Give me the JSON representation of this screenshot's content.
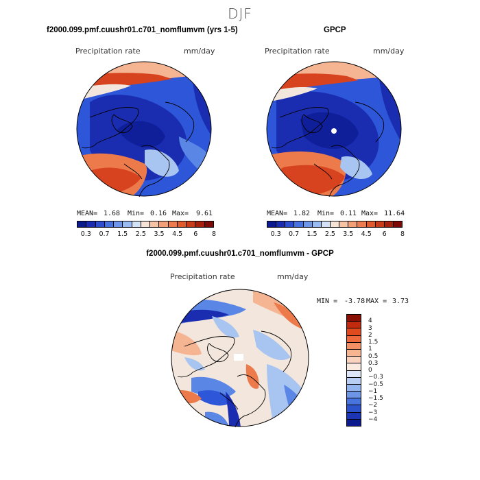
{
  "figure": {
    "season": "DJF",
    "colors": {
      "deep_blue": "#1a2db0",
      "blue": "#2d56d8",
      "mid_blue": "#5a86e6",
      "light_blue": "#a8c4f0",
      "pale": "#f3e6dc",
      "peach": "#f5b593",
      "orange": "#ec7a4a",
      "red": "#d8431f",
      "dark_red": "#8a0f04"
    }
  },
  "panel_left": {
    "title": "f2000.099.pmf.cuushr01.c701_nomflumvm (yrs 1-5)",
    "var_label": "Precipitation rate",
    "units": "mm/day",
    "mean_label": "MEAN=",
    "mean_value": "1.68",
    "min_label": "Min=",
    "min_value": "0.16",
    "max_label": "Max=",
    "max_value": "9.61"
  },
  "panel_right": {
    "title": "GPCP",
    "var_label": "Precipitation rate",
    "units": "mm/day",
    "mean_label": "MEAN=",
    "mean_value": "1.82",
    "min_label": "Min=",
    "min_value": "0.11",
    "max_label": "Max=",
    "max_value": "11.64"
  },
  "abs_colorbar": {
    "colors": [
      "#0b1a8c",
      "#1a2db0",
      "#2d4fcf",
      "#4773e0",
      "#6d98ea",
      "#9bbcf2",
      "#d3e2f7",
      "#f6e3d6",
      "#f7c3a5",
      "#f2a077",
      "#ec7b4f",
      "#e05a2b",
      "#c83b18",
      "#a4200a",
      "#7a0a03"
    ],
    "ticks": [
      "0.3",
      "0.7",
      "1.5",
      "2.5",
      "3.5",
      "4.5",
      "6",
      "8"
    ]
  },
  "panel_diff": {
    "title": "f2000.099.pmf.cuushr01.c701_nomflumvm - GPCP",
    "var_label": "Precipitation rate",
    "units": "mm/day",
    "min_label": "MIN =",
    "min_value": "-3.78",
    "max_label": "MAX =",
    "max_value": "3.73"
  },
  "diff_colorbar": {
    "colors": [
      "#8a0f04",
      "#c02a0e",
      "#e04a1f",
      "#ee6a3c",
      "#f39064",
      "#f7b592",
      "#f9d3bd",
      "#fbeae0",
      "#dde6f6",
      "#b9cef3",
      "#94b4ee",
      "#6d95e6",
      "#4773dc",
      "#2c52cc",
      "#1c35b4",
      "#0b1a8c"
    ],
    "ticks": [
      "4",
      "3",
      "2",
      "1.5",
      "1",
      "0.5",
      "0.3",
      "0",
      "−0.3",
      "−0.5",
      "−1",
      "−1.5",
      "−2",
      "−3",
      "−4"
    ]
  }
}
